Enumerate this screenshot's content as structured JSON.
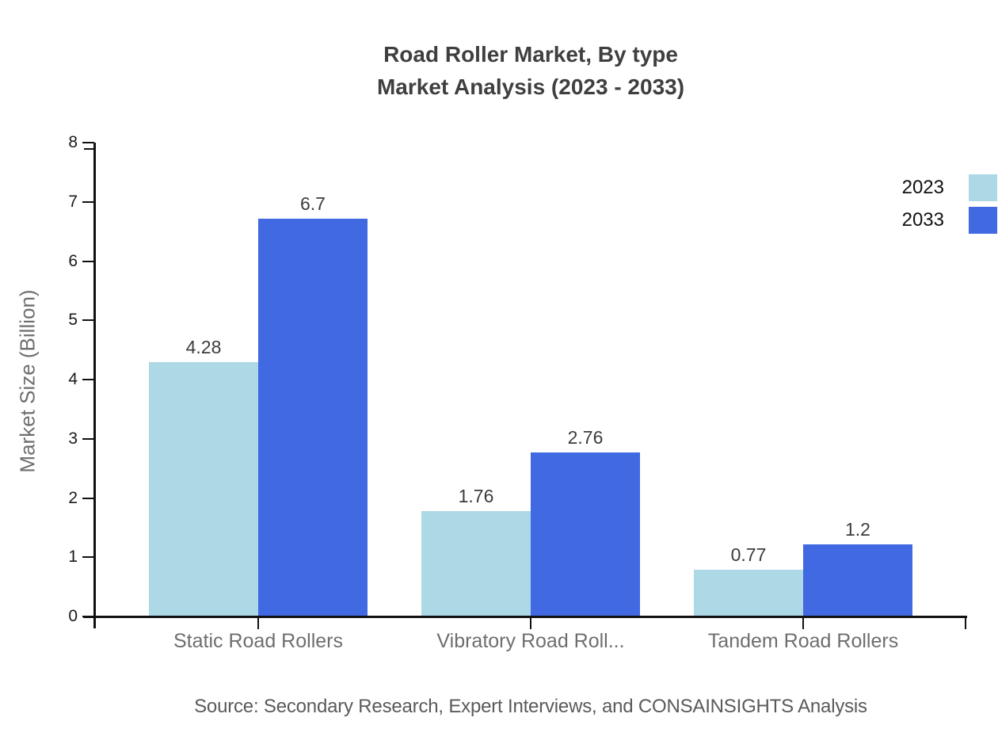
{
  "title": {
    "line1": "Road Roller Market, By type",
    "line2": "Market Analysis (2023 - 2033)"
  },
  "source": "Source: Secondary Research, Expert Interviews, and CONSAINSIGHTS Analysis",
  "chart_data": {
    "type": "bar",
    "title": "Road Roller Market, By type — Market Analysis (2023 - 2033)",
    "categories": [
      "Static Road Rollers",
      "Vibratory Road Roll...",
      "Tandem Road Rollers"
    ],
    "series": [
      {
        "name": "2023",
        "color": "#ADD8E6",
        "values": [
          4.28,
          1.76,
          0.77
        ],
        "labels": [
          "4.28",
          "1.76",
          "0.77"
        ]
      },
      {
        "name": "2033",
        "color": "#4169E1",
        "values": [
          6.7,
          2.76,
          1.2
        ],
        "labels": [
          "6.7",
          "2.76",
          "1.2"
        ]
      }
    ],
    "xlabel": "",
    "ylabel": "Market Size (Billion)",
    "ylim": [
      0,
      8
    ],
    "yticks": [
      0,
      1,
      2,
      3,
      4,
      5,
      6,
      7,
      8
    ],
    "grid": false,
    "legend_position": "top-right",
    "bar_value_labels": true
  },
  "colors": {
    "background": "#FFFFFF",
    "axis": "#111111",
    "title_text": "#3F3F3F",
    "bar_value_label": "#3C3C3C",
    "y_tick_label": "#1A1A1A",
    "category_label": "#6E6E6E",
    "axis_title": "#6E6E6E",
    "source_text": "#5A5A5A",
    "legend_label": "#111111"
  }
}
